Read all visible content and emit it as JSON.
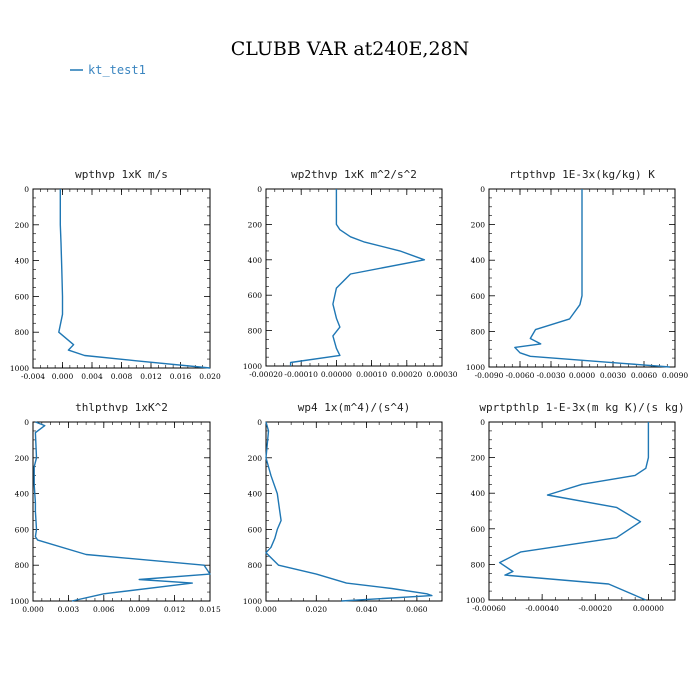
{
  "figure_title": "CLUBB VAR at240E,28N",
  "legend": {
    "label": "kt_test1",
    "color": "#1f77b4"
  },
  "chart_data": [
    {
      "type": "line",
      "title": "wpthvp   1xK  m/s",
      "xlim": [
        -0.004,
        0.02
      ],
      "xticks": [
        -0.004,
        0.0,
        0.004,
        0.008,
        0.012,
        0.016,
        0.02
      ],
      "xtick_labels": [
        "-0.004",
        "0.000",
        "0.004",
        "0.008",
        "0.012",
        "0.016",
        "0.020"
      ],
      "ylim": [
        0,
        1000
      ],
      "yticks": [
        0,
        200,
        400,
        600,
        800,
        1000
      ],
      "y_inverted": true,
      "series": [
        {
          "name": "kt_test1",
          "color": "#1f77b4",
          "x": [
            -0.0003,
            -0.0003,
            -0.0002,
            -0.0001,
            0.0,
            0.0,
            0.0,
            -0.0005,
            0.0015,
            0.0008,
            0.003,
            0.01,
            0.02
          ],
          "y": [
            0,
            200,
            300,
            450,
            600,
            650,
            700,
            800,
            870,
            900,
            930,
            960,
            1000
          ]
        }
      ]
    },
    {
      "type": "line",
      "title": "wp2thvp   1xK  m^2/s^2",
      "xlim": [
        -0.0002,
        0.0003
      ],
      "xticks": [
        -0.0002,
        -0.0001,
        0.0,
        0.0001,
        0.0002,
        0.0003
      ],
      "xtick_labels": [
        "-0.00020",
        "-0.00010",
        "0.00000",
        "0.00010",
        "0.00020",
        "0.00030"
      ],
      "ylim": [
        0,
        1000
      ],
      "yticks": [
        0,
        200,
        400,
        600,
        800,
        1000
      ],
      "y_inverted": true,
      "series": [
        {
          "name": "kt_test1",
          "color": "#1f77b4",
          "x": [
            0.0,
            0.0,
            0.0,
            1e-05,
            4e-05,
            8e-05,
            0.00018,
            0.00025,
            4e-05,
            0.0,
            -1e-05,
            0.0,
            1e-05,
            -1e-05,
            0.0,
            1e-05,
            -0.00013,
            -0.00013
          ],
          "y": [
            0,
            100,
            200,
            230,
            270,
            300,
            350,
            400,
            480,
            560,
            650,
            730,
            780,
            830,
            900,
            940,
            980,
            1000
          ]
        }
      ]
    },
    {
      "type": "line",
      "title": "rtpthvp   1E-3x(kg/kg) K",
      "xlim": [
        -0.009,
        0.009
      ],
      "xticks": [
        -0.009,
        -0.006,
        -0.003,
        0.0,
        0.003,
        0.006,
        0.009
      ],
      "xtick_labels": [
        "-0.0090",
        "-0.0060",
        "-0.0030",
        "0.0000",
        "0.0030",
        "0.0060",
        "0.0090"
      ],
      "ylim": [
        0,
        1000
      ],
      "yticks": [
        0,
        200,
        400,
        600,
        800,
        1000
      ],
      "y_inverted": true,
      "series": [
        {
          "name": "kt_test1",
          "color": "#1f77b4",
          "x": [
            0.0,
            0.0,
            0.0,
            0.0,
            -0.0002,
            -0.0012,
            -0.0045,
            -0.005,
            -0.004,
            -0.0065,
            -0.006,
            -0.005,
            0.004,
            0.0085
          ],
          "y": [
            0,
            200,
            400,
            600,
            650,
            730,
            790,
            840,
            870,
            890,
            920,
            940,
            980,
            1000
          ]
        }
      ]
    },
    {
      "type": "line",
      "title": "thlpthvp   1xK^2",
      "xlim": [
        0.0,
        0.015
      ],
      "xticks": [
        0.0,
        0.003,
        0.006,
        0.009,
        0.012,
        0.015
      ],
      "xtick_labels": [
        "0.000",
        "0.003",
        "0.006",
        "0.009",
        "0.012",
        "0.015"
      ],
      "ylim": [
        0,
        1000
      ],
      "yticks": [
        0,
        200,
        400,
        600,
        800,
        1000
      ],
      "y_inverted": true,
      "series": [
        {
          "name": "kt_test1",
          "color": "#1f77b4",
          "x": [
            0.0002,
            0.001,
            0.0002,
            0.0003,
            0.0001,
            0.0001,
            0.0002,
            0.0002,
            0.0003,
            0.0002,
            0.0004,
            0.0045,
            0.0145,
            0.015,
            0.009,
            0.0135,
            0.006,
            0.0033
          ],
          "y": [
            0,
            20,
            60,
            200,
            250,
            350,
            450,
            500,
            600,
            640,
            660,
            740,
            800,
            850,
            880,
            900,
            960,
            1000
          ]
        }
      ]
    },
    {
      "type": "line",
      "title": "wp4   1x(m^4)/(s^4)",
      "xlim": [
        0.0,
        0.07
      ],
      "xticks": [
        0.0,
        0.02,
        0.04,
        0.06
      ],
      "xtick_labels": [
        "0.000",
        "0.020",
        "0.040",
        "0.060"
      ],
      "ylim": [
        0,
        1000
      ],
      "yticks": [
        0,
        200,
        400,
        600,
        800,
        1000
      ],
      "y_inverted": true,
      "series": [
        {
          "name": "kt_test1",
          "color": "#1f77b4",
          "x": [
            0.0,
            0.001,
            0.0,
            0.002,
            0.0045,
            0.0055,
            0.006,
            0.0045,
            0.0035,
            0.002,
            0.0,
            0.005,
            0.02,
            0.032,
            0.05,
            0.064,
            0.066,
            0.03
          ],
          "y": [
            0,
            50,
            200,
            300,
            400,
            500,
            550,
            600,
            650,
            700,
            730,
            800,
            850,
            900,
            930,
            960,
            970,
            1000
          ]
        }
      ]
    },
    {
      "type": "line",
      "title": "wprtpthlp   1-E-3x(m kg K)/(s kg)",
      "xlim": [
        -0.0006,
        0.0001
      ],
      "xticks": [
        -0.0006,
        -0.0004,
        -0.0002,
        0.0
      ],
      "xtick_labels": [
        "-0.00060",
        "-0.00040",
        "-0.00020",
        "0.00000"
      ],
      "ylim": [
        0,
        1000
      ],
      "yticks": [
        0,
        200,
        400,
        600,
        800,
        1000
      ],
      "y_inverted": true,
      "series": [
        {
          "name": "kt_test1",
          "color": "#1f77b4",
          "x": [
            0.0,
            0.0,
            0.0,
            -1e-05,
            -5e-05,
            -0.00025,
            -0.00038,
            -0.00012,
            -3e-05,
            -0.00012,
            -0.00048,
            -0.00056,
            -0.00051,
            -0.00054,
            -0.00015,
            -1e-05
          ],
          "y": [
            0,
            100,
            200,
            260,
            300,
            350,
            410,
            480,
            560,
            650,
            730,
            790,
            840,
            860,
            910,
            1000
          ]
        }
      ]
    }
  ]
}
